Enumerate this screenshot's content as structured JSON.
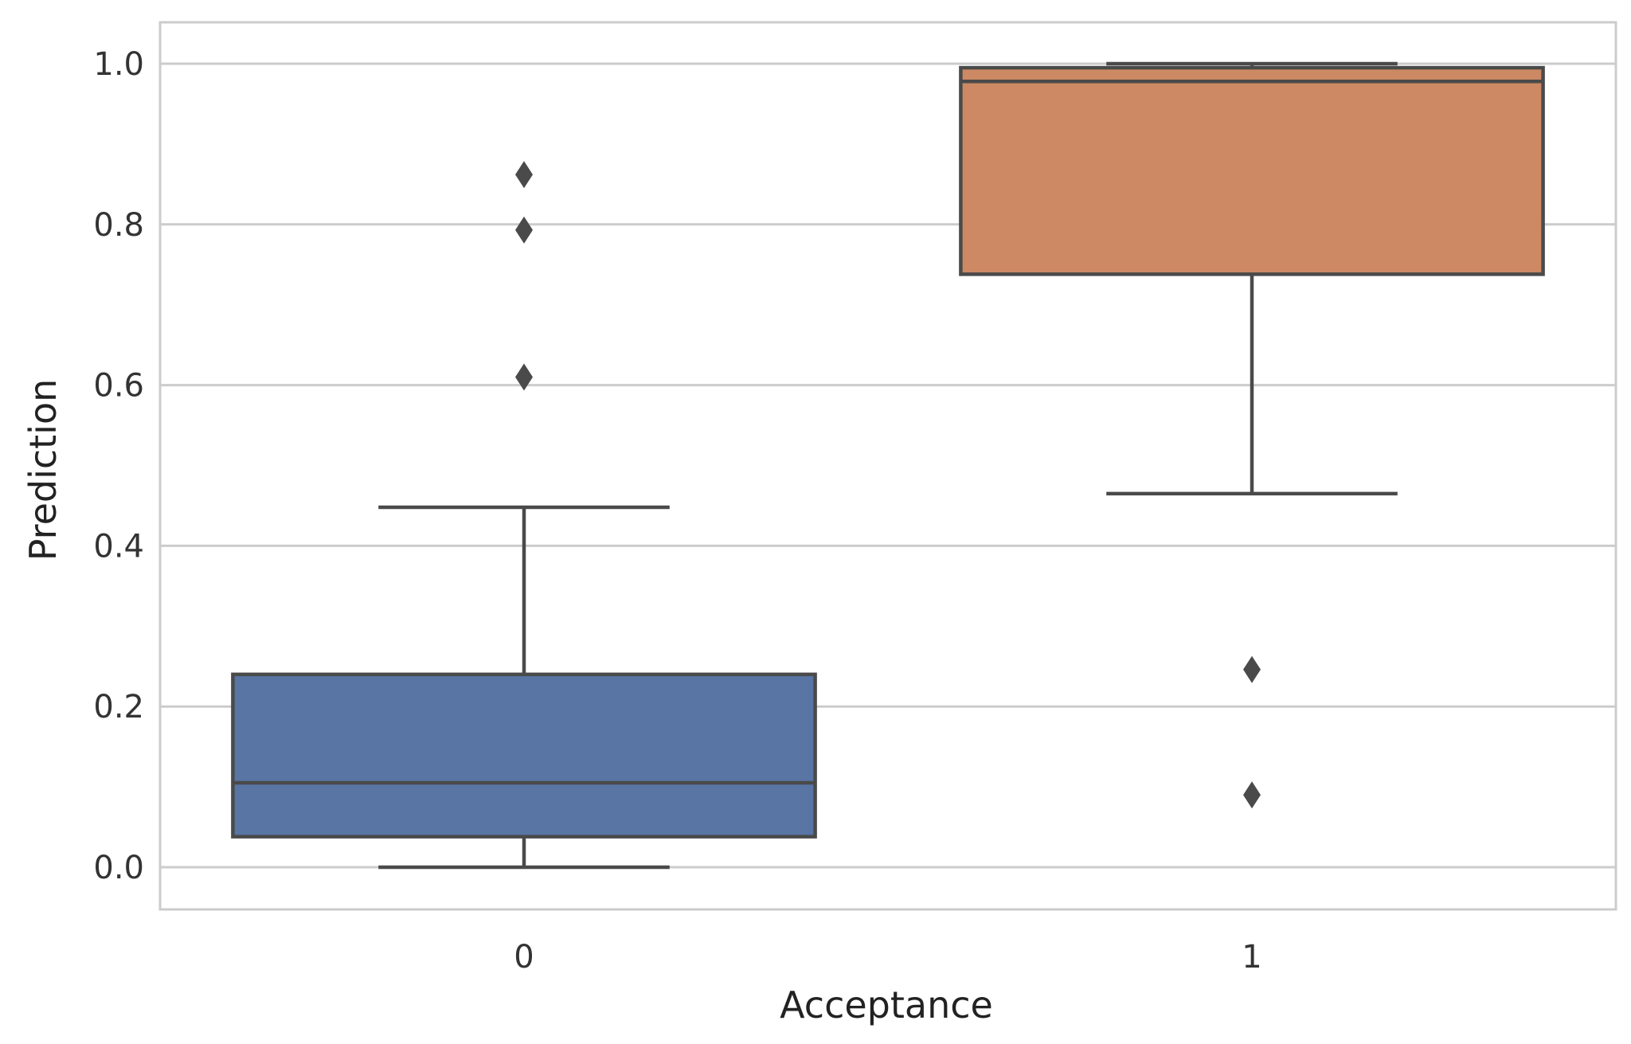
{
  "chart_data": {
    "type": "box",
    "xlabel": "Acceptance",
    "ylabel": "Prediction",
    "ylim": [
      -0.05,
      1.05
    ],
    "yticks": [
      0.0,
      0.2,
      0.4,
      0.6,
      0.8,
      1.0
    ],
    "ytick_labels": [
      "0.0",
      "0.2",
      "0.4",
      "0.6",
      "0.8",
      "1.0"
    ],
    "grid": "horizontal",
    "categories": [
      "0",
      "1"
    ],
    "boxes": [
      {
        "category": "0",
        "color": "#5875A4",
        "whisker_low": 0.0,
        "q1": 0.038,
        "median": 0.105,
        "q3": 0.24,
        "whisker_high": 0.448,
        "outliers": [
          0.862,
          0.793,
          0.61
        ]
      },
      {
        "category": "1",
        "color": "#CC8963",
        "whisker_low": 0.465,
        "q1": 0.738,
        "median": 0.978,
        "q3": 0.995,
        "whisker_high": 1.0,
        "outliers": [
          0.246,
          0.09
        ]
      }
    ],
    "line_color": "#4A4A4A",
    "grid_color": "#CCCCCC"
  }
}
